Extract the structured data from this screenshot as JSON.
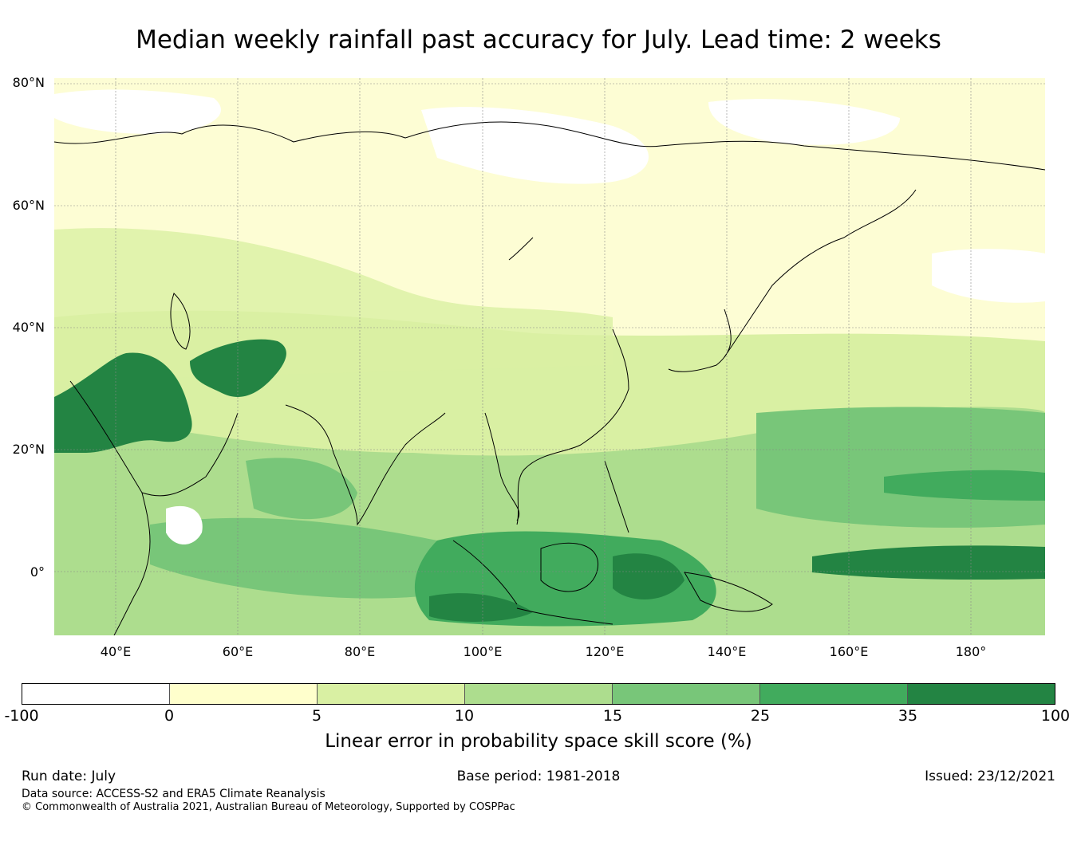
{
  "title": "Median weekly rainfall past accuracy for July. Lead time: 2 weeks",
  "map": {
    "lat_labels": [
      "80°N",
      "60°N",
      "40°N",
      "20°N",
      "0°"
    ],
    "lon_labels": [
      "40°E",
      "60°E",
      "80°E",
      "100°E",
      "120°E",
      "140°E",
      "160°E",
      "180°"
    ],
    "background_color": "#fdfdd4",
    "regions": [
      {
        "name": "arabia-iran",
        "level": "35-100",
        "color": "#227d40"
      },
      {
        "name": "central-asia",
        "level": "35-100",
        "color": "#227d40"
      },
      {
        "name": "equatorial-pacific",
        "level": "35-100",
        "color": "#227d40"
      },
      {
        "name": "maritime-continent",
        "level": "25-35",
        "color": "#3ba559"
      },
      {
        "name": "indian-ocean",
        "level": "15-25",
        "color": "#78c679"
      },
      {
        "name": "western-pacific",
        "level": "10-15",
        "color": "#addd8e"
      },
      {
        "name": "siberia",
        "level": "-100-0",
        "color": "#ffffff"
      }
    ]
  },
  "colorbar": {
    "ticks": [
      "-100",
      "0",
      "5",
      "10",
      "15",
      "25",
      "35",
      "100"
    ],
    "colors": [
      "#ffffff",
      "#ffffcc",
      "#d9f0a3",
      "#addd8e",
      "#78c679",
      "#41ab5d",
      "#238443"
    ],
    "label": "Linear error in probability space skill score (%)"
  },
  "footer": {
    "run_date": "Run date: July",
    "base_period": "Base period: 1981-2018",
    "issued": "Issued: 23/12/2021",
    "data_source": "Data source: ACCESS-S2 and ERA5 Climate Reanalysis",
    "copyright": "© Commonwealth of Australia 2021, Australian Bureau of Meteorology, Supported by COSPPac"
  }
}
